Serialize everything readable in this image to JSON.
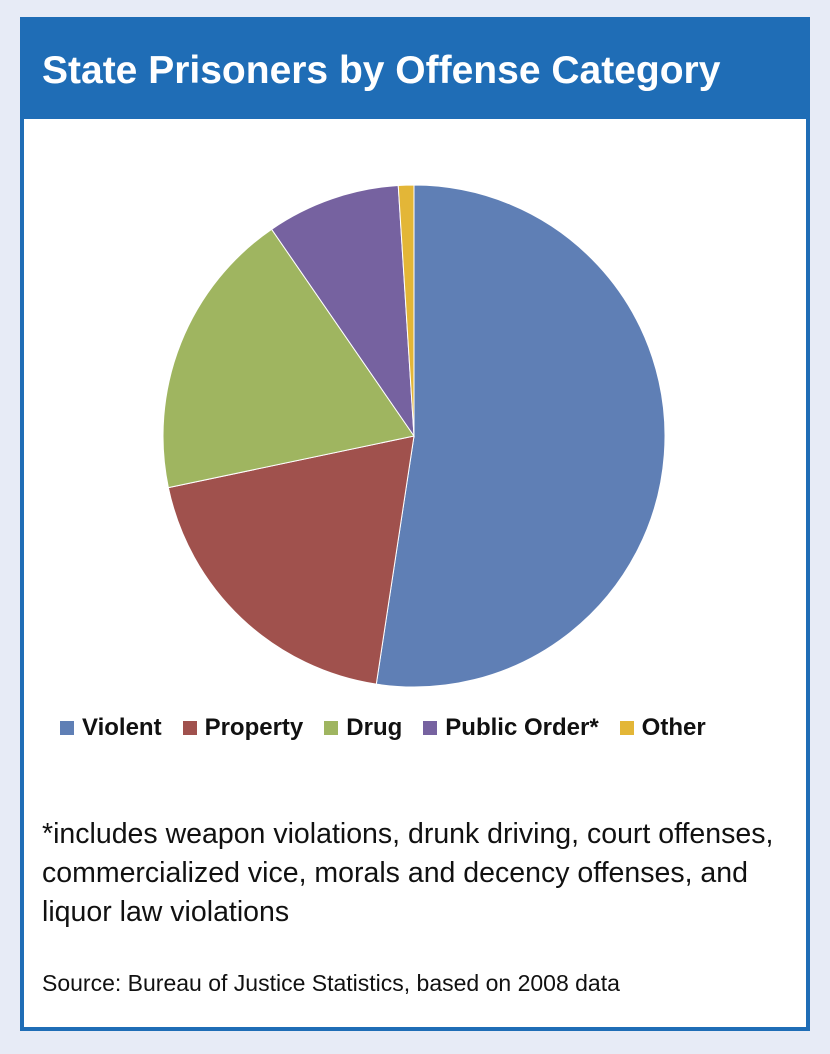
{
  "title": "State Prisoners by Offense Category",
  "footnote": "*includes weapon violations, drunk driving, court offenses, commercialized vice, morals and decency offenses, and liquor law violations",
  "source": "Source: Bureau of Justice Statistics, based on 2008 data",
  "chart_data": {
    "type": "pie",
    "title": "State Prisoners by Offense Category",
    "legend_position": "bottom",
    "start_angle": "12 o'clock, clockwise",
    "categories": [
      "Violent",
      "Property",
      "Drug",
      "Public Order*",
      "Other"
    ],
    "values": [
      52.4,
      19.3,
      18.7,
      8.6,
      1.0
    ],
    "colors": [
      "#5f7fb5",
      "#a0514d",
      "#9fb560",
      "#7662a0",
      "#e3b637"
    ]
  }
}
